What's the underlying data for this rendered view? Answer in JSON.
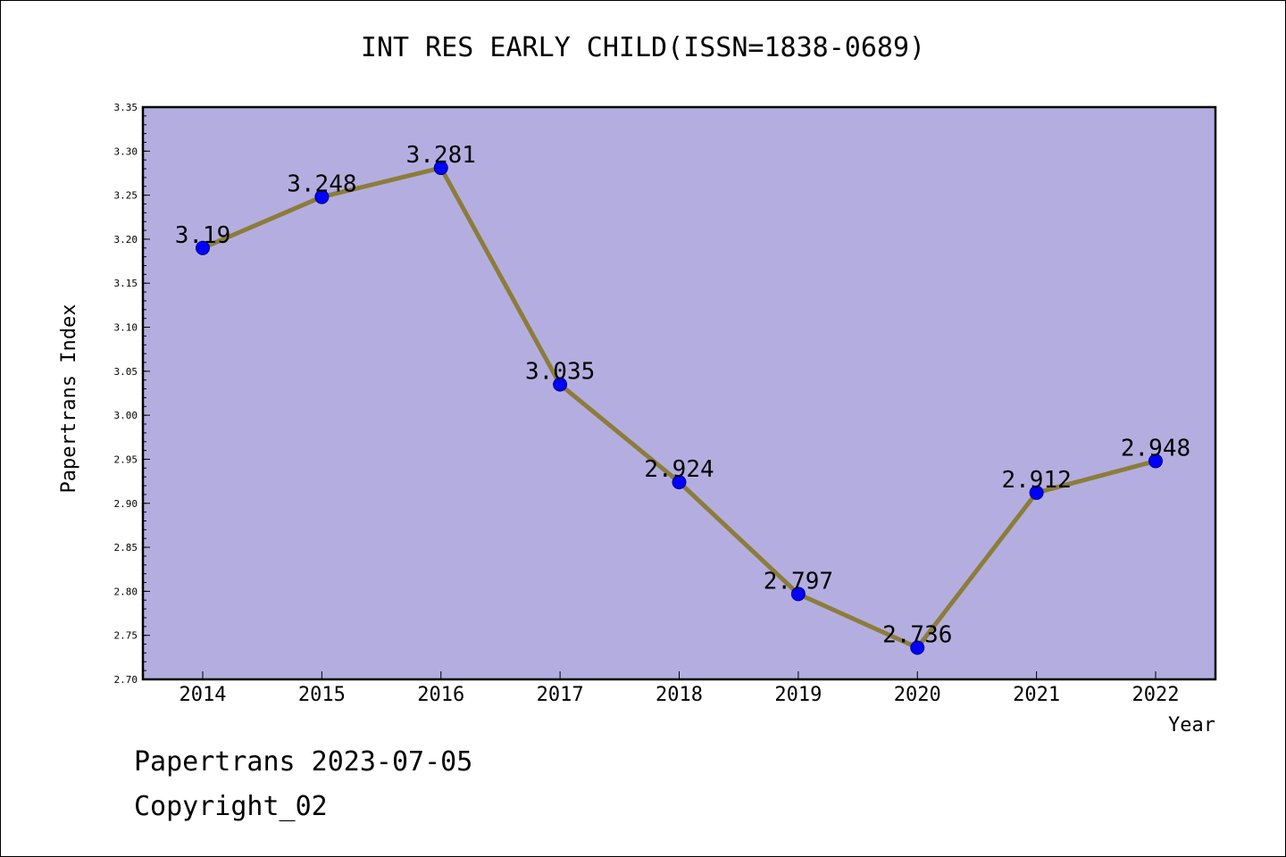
{
  "footer": {
    "date_line": "Papertrans 2023-07-05",
    "copyright_line": "Copyright_02"
  },
  "chart_data": {
    "type": "line",
    "title": "INT RES EARLY CHILD(ISSN=1838-0689)",
    "xlabel": "Year",
    "ylabel": "Papertrans Index",
    "categories": [
      "2014",
      "2015",
      "2016",
      "2017",
      "2018",
      "2019",
      "2020",
      "2021",
      "2022"
    ],
    "values": [
      3.19,
      3.248,
      3.281,
      3.035,
      2.924,
      2.797,
      2.736,
      2.912,
      2.948
    ],
    "value_labels": [
      "3.19",
      "3.248",
      "3.281",
      "3.035",
      "2.924",
      "2.797",
      "2.736",
      "2.912",
      "2.948"
    ],
    "ylim": [
      2.7,
      3.35
    ],
    "yticks": [
      "2.70",
      "2.75",
      "2.80",
      "2.85",
      "2.90",
      "2.95",
      "3.00",
      "3.05",
      "3.10",
      "3.15",
      "3.20",
      "3.25",
      "3.30",
      "3.35"
    ],
    "grid": false,
    "colors": {
      "plot_background": "#b4aee0",
      "line": "#8b7d3a",
      "marker": "#0000ff",
      "marker_edge": "#000080"
    }
  }
}
